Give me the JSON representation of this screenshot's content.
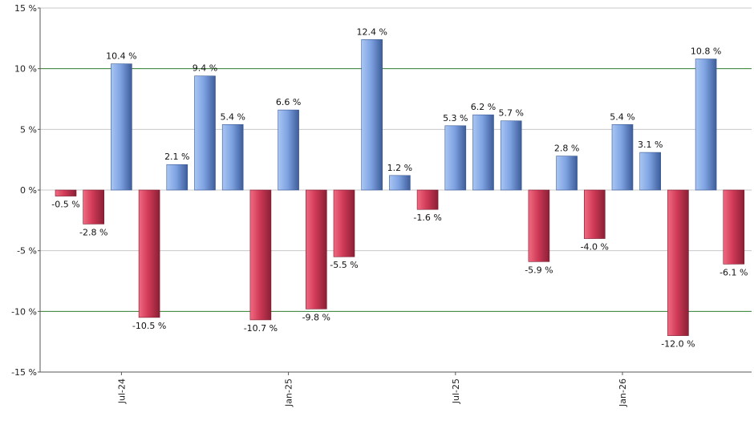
{
  "chart_data": {
    "type": "bar",
    "title": "",
    "xlabel": "",
    "ylabel": "",
    "ylim": [
      -15,
      15
    ],
    "y_ticks": [
      {
        "value": 15,
        "label": "15 %"
      },
      {
        "value": 10,
        "label": "10 %"
      },
      {
        "value": 5,
        "label": "5 %"
      },
      {
        "value": 0,
        "label": "0 %"
      },
      {
        "value": -5,
        "label": "-5 %"
      },
      {
        "value": -10,
        "label": "-10 %"
      },
      {
        "value": -15,
        "label": "-15 %"
      }
    ],
    "x_ticks": [
      {
        "index": 2,
        "label": "Jul-24"
      },
      {
        "index": 8,
        "label": "Jan-25"
      },
      {
        "index": 14,
        "label": "Jul-25"
      },
      {
        "index": 20,
        "label": "Jan-26"
      }
    ],
    "values": [
      -0.5,
      -2.8,
      10.4,
      -10.5,
      2.1,
      9.4,
      5.4,
      -10.7,
      6.6,
      -9.8,
      -5.5,
      12.4,
      1.2,
      -1.6,
      5.3,
      6.2,
      5.7,
      -5.9,
      2.8,
      -4.0,
      5.4,
      3.1,
      -12.0,
      10.8,
      -6.1
    ],
    "value_labels": [
      "-0.5 %",
      "-2.8 %",
      "10.4 %",
      "-10.5 %",
      "2.1 %",
      "9.4 %",
      "5.4 %",
      "-10.7 %",
      "6.6 %",
      "-9.8 %",
      "-5.5 %",
      "12.4 %",
      "1.2 %",
      "-1.6 %",
      "5.3 %",
      "6.2 %",
      "5.7 %",
      "-5.9 %",
      "2.8 %",
      "-4.0 %",
      "5.4 %",
      "3.1 %",
      "-12.0 %",
      "10.8 %",
      "-6.1 %"
    ],
    "highlighted_gridlines": [
      10,
      -10
    ],
    "grid": true,
    "colors": {
      "positive": "#6f95d8",
      "negative": "#c8304f",
      "grid": "#c8c8c8",
      "highlight_grid": "#2e7d2e",
      "axis": "#555555"
    }
  }
}
